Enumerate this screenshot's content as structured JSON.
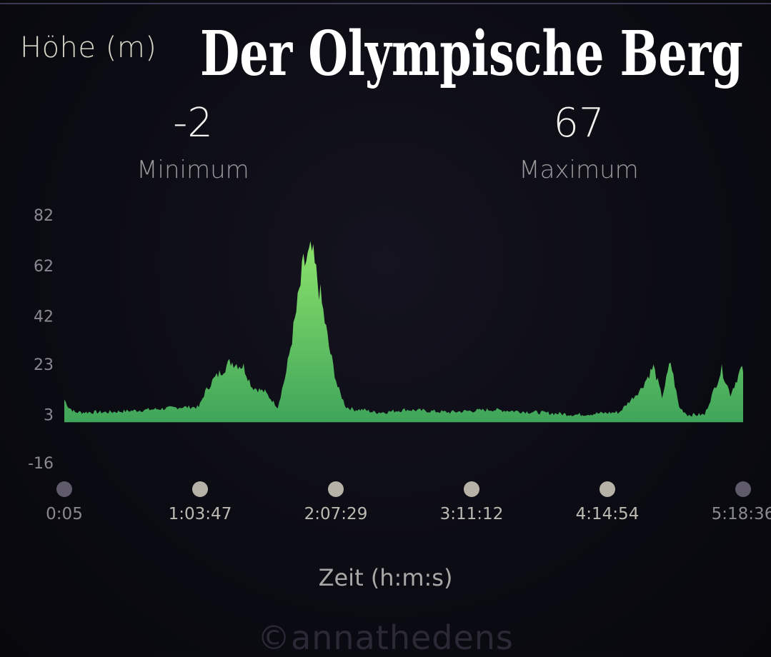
{
  "header": {
    "metric_label": "Höhe (m)",
    "banner_title": "Der Olympische Berg"
  },
  "stats": {
    "min_value": "-2",
    "min_caption": "Minimum",
    "max_value": "67",
    "max_caption": "Maximum"
  },
  "watermark": "©annathedens",
  "colors": {
    "background": "#0b0b13",
    "area_top": "#8ce36b",
    "area_bottom": "#3fa55a",
    "tick_text": "#8a8992",
    "marker_light": "#b7b2a8",
    "marker_dark": "#5f5b6b"
  },
  "chart_data": {
    "type": "area",
    "title": "",
    "xlabel": "Zeit (h:m:s)",
    "ylabel": "Höhe (m)",
    "ylim": [
      -16,
      82
    ],
    "yticks": [
      82,
      62,
      42,
      23,
      3,
      -16
    ],
    "xticks": [
      "0:05",
      "1:03:47",
      "2:07:29",
      "3:11:12",
      "4:14:54",
      "5:18:36"
    ],
    "grid": false,
    "x_minutes": [
      0,
      2,
      5,
      20,
      40,
      55,
      63,
      66,
      70,
      78,
      84,
      88,
      94,
      100,
      104,
      108,
      112,
      116,
      120,
      124,
      128,
      132,
      136,
      140,
      145,
      150,
      160,
      180,
      200,
      220,
      240,
      260,
      270,
      276,
      280,
      284,
      288,
      292,
      300,
      308,
      312,
      317,
      318
    ],
    "y_values": [
      9,
      6,
      4,
      4,
      5,
      6,
      6,
      12,
      17,
      24,
      22,
      14,
      12,
      6,
      20,
      40,
      62,
      67,
      50,
      30,
      14,
      6,
      5,
      5,
      4,
      4,
      5,
      4,
      5,
      4,
      3,
      4,
      13,
      22,
      10,
      24,
      6,
      3,
      3,
      21,
      11,
      21,
      20
    ]
  }
}
